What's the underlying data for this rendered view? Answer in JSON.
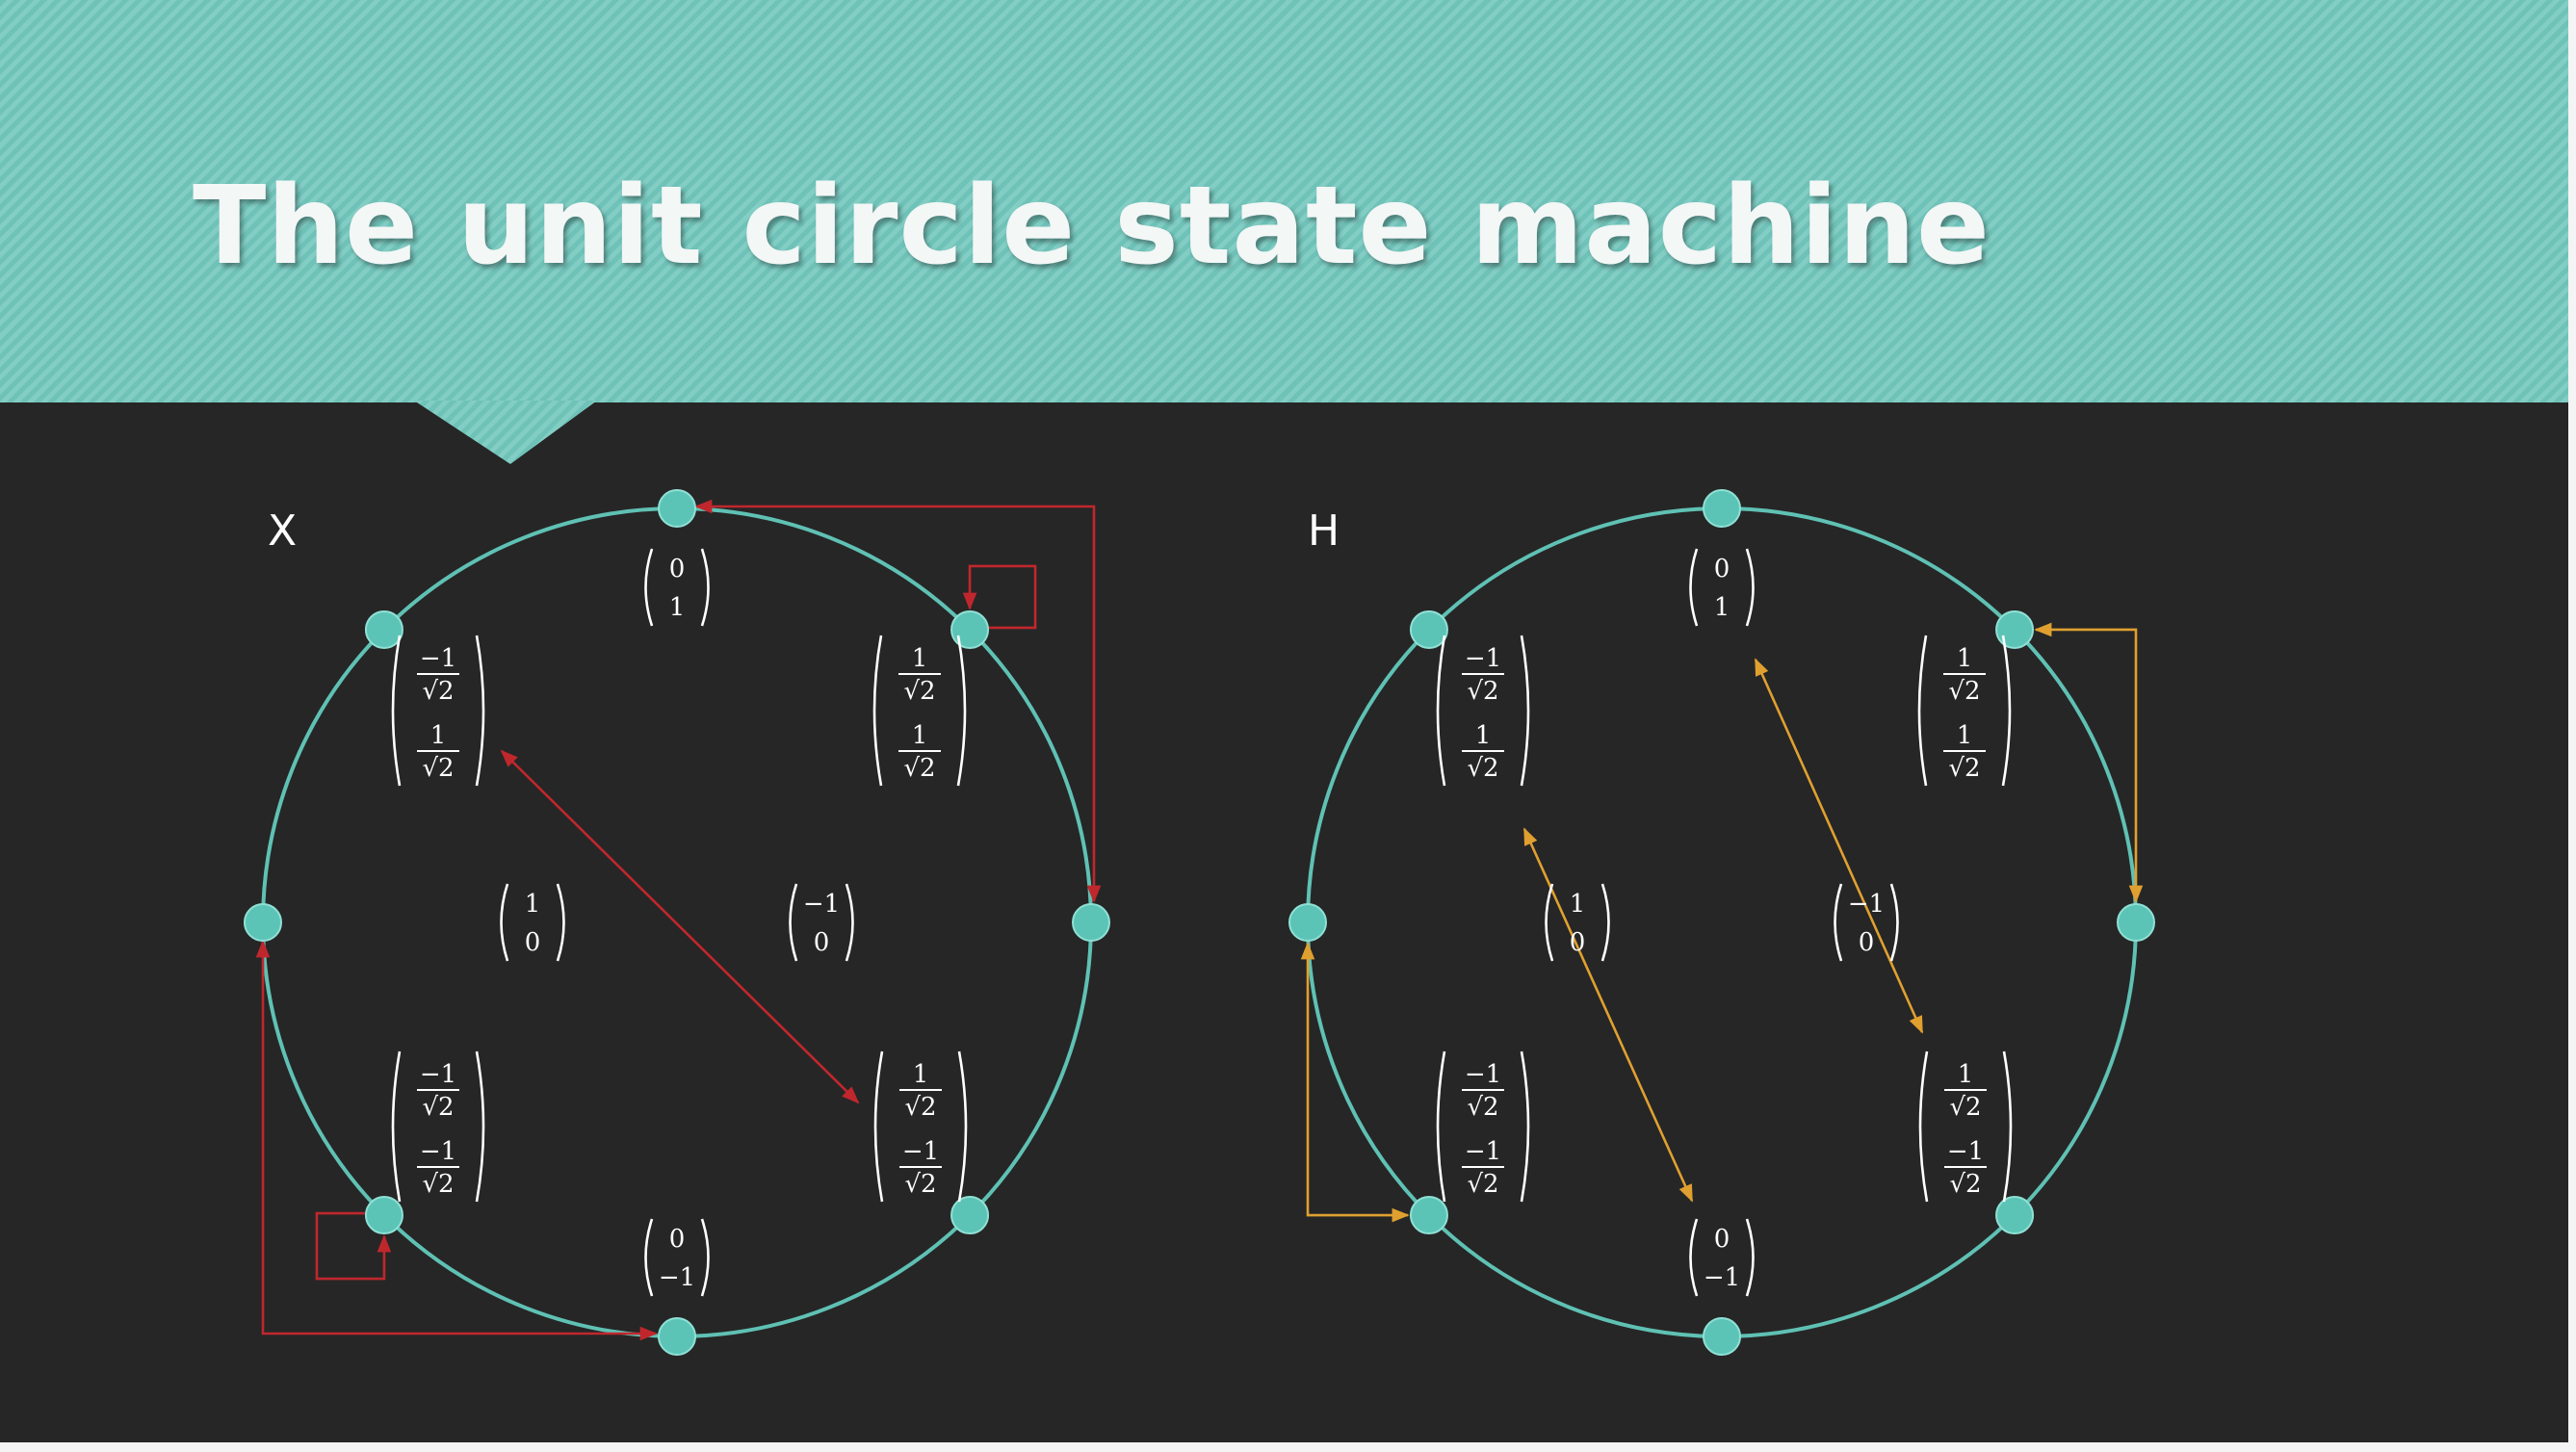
{
  "slide": {
    "title": "The unit circle state machine"
  },
  "colors": {
    "banner": "#7ac8bf",
    "background": "#262626",
    "circle": "#5fc1b4",
    "node": "#5cc4b6",
    "x_arrows": "#c0272d",
    "h_arrows": "#e0a030"
  },
  "panels": [
    {
      "id": "x",
      "label": "X",
      "arrow_color": "#c0272d",
      "states": [
        {
          "id": "deg90",
          "label": "|0, 1⟩",
          "top": [
            "0"
          ],
          "bottom": [
            "1"
          ]
        },
        {
          "id": "deg45",
          "top": [
            "1",
            "√2"
          ],
          "bottom": [
            "1",
            "√2"
          ]
        },
        {
          "id": "deg0",
          "top": [
            "1"
          ],
          "bottom": [
            "0"
          ]
        },
        {
          "id": "deg315",
          "top": [
            "1",
            "√2"
          ],
          "bottom": [
            "−1",
            "√2"
          ]
        },
        {
          "id": "deg270",
          "top": [
            "0"
          ],
          "bottom": [
            "−1"
          ]
        },
        {
          "id": "deg225",
          "top": [
            "−1",
            "√2"
          ],
          "bottom": [
            "−1",
            "√2"
          ]
        },
        {
          "id": "deg180",
          "top": [
            "−1"
          ],
          "bottom": [
            "0"
          ]
        },
        {
          "id": "deg135",
          "top": [
            "−1",
            "√2"
          ],
          "bottom": [
            "1",
            "√2"
          ]
        }
      ],
      "transitions": [
        {
          "from": "deg90",
          "to": "deg0",
          "bidirectional": true
        },
        {
          "from": "deg45",
          "to": "deg45",
          "self_loop": true
        },
        {
          "from": "deg135",
          "to": "deg315",
          "bidirectional": true
        },
        {
          "from": "deg180",
          "to": "deg270",
          "bidirectional": true
        },
        {
          "from": "deg225",
          "to": "deg225",
          "self_loop": true
        }
      ]
    },
    {
      "id": "h",
      "label": "H",
      "arrow_color": "#e0a030",
      "states": [
        {
          "id": "deg90",
          "top": [
            "0"
          ],
          "bottom": [
            "1"
          ]
        },
        {
          "id": "deg45",
          "top": [
            "1",
            "√2"
          ],
          "bottom": [
            "1",
            "√2"
          ]
        },
        {
          "id": "deg0",
          "top": [
            "1"
          ],
          "bottom": [
            "0"
          ]
        },
        {
          "id": "deg315",
          "top": [
            "1",
            "√2"
          ],
          "bottom": [
            "−1",
            "√2"
          ]
        },
        {
          "id": "deg270",
          "top": [
            "0"
          ],
          "bottom": [
            "−1"
          ]
        },
        {
          "id": "deg225",
          "top": [
            "−1",
            "√2"
          ],
          "bottom": [
            "−1",
            "√2"
          ]
        },
        {
          "id": "deg180",
          "top": [
            "−1"
          ],
          "bottom": [
            "0"
          ]
        },
        {
          "id": "deg135",
          "top": [
            "−1",
            "√2"
          ],
          "bottom": [
            "1",
            "√2"
          ]
        }
      ],
      "transitions": [
        {
          "from": "deg45",
          "to": "deg0",
          "bidirectional": true
        },
        {
          "from": "deg90",
          "to": "deg315",
          "bidirectional": true
        },
        {
          "from": "deg135",
          "to": "deg270",
          "bidirectional": true
        },
        {
          "from": "deg180",
          "to": "deg225",
          "bidirectional": true
        }
      ]
    }
  ]
}
